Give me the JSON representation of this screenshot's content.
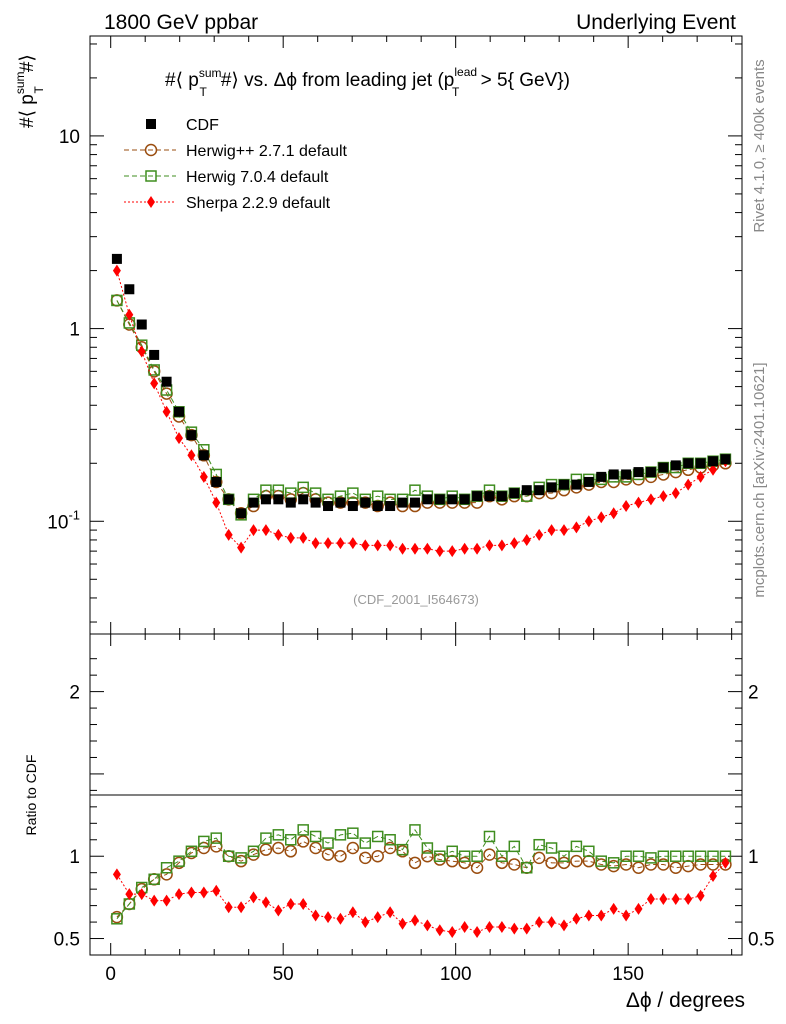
{
  "header": {
    "left": "1800 GeV ppbar",
    "right": "Underlying Event"
  },
  "side": {
    "rivet": "Rivet 4.1.0, ≥ 400k events",
    "mcplots": "mcplots.cern.ch [arXiv:2401.10621]"
  },
  "plot": {
    "title_pre": "#⟨ p",
    "title_sup": "sum",
    "title_sub": "T",
    "title_post": "#⟩ vs. Δϕ from leading jet  (p",
    "title_sup2": "lead",
    "title_sub2": "T",
    "title_tail": " > 5{ GeV})",
    "ylabel_main": "#⟨ p",
    "ylabel_sup": "sum",
    "ylabel_sub": "T",
    "ylabel_tail": "#⟩",
    "ylabel_ratio": "Ratio to CDF",
    "xlabel": "Δϕ / degrees",
    "watermark": "(CDF_2001_I564673)"
  },
  "chart_data": {
    "type": "scatter",
    "title": "#⟨ p_T^sum #⟩ vs. Δϕ from leading jet (p_T^lead > 5 GeV)",
    "xlabel": "Δϕ / degrees",
    "ylabel": "#⟨ p_T^sum #⟩",
    "xlim": [
      -6,
      183
    ],
    "ylim_main": [
      0.026,
      33
    ],
    "ylim_ratio": [
      0.4,
      2.35
    ],
    "yscale_main": "log",
    "x_ticks": [
      "0",
      "50",
      "100",
      "150"
    ],
    "y_ticks_main": [
      "10",
      "1",
      "10^-1"
    ],
    "y_ticks_ratio": [
      "2",
      "1",
      "0.5"
    ],
    "legend_position": "top-left",
    "x": [
      1.8,
      5.4,
      9,
      12.6,
      16.2,
      19.8,
      23.4,
      27,
      30.6,
      34.2,
      37.8,
      41.4,
      45,
      48.6,
      52.2,
      55.8,
      59.4,
      63,
      66.6,
      70.2,
      73.8,
      77.4,
      81,
      84.6,
      88.2,
      91.8,
      95.4,
      99,
      102.6,
      106.2,
      109.8,
      113.4,
      117,
      120.6,
      124.2,
      127.8,
      131.4,
      135,
      138.6,
      142.2,
      145.8,
      149.4,
      153,
      156.6,
      160.2,
      163.8,
      167.4,
      171,
      174.6,
      178.2
    ],
    "series": [
      {
        "name": "CDF",
        "marker": "filled-square",
        "color": "#000000",
        "values": [
          2.3,
          1.6,
          1.05,
          0.73,
          0.53,
          0.37,
          0.28,
          0.22,
          0.16,
          0.13,
          0.11,
          0.125,
          0.13,
          0.13,
          0.125,
          0.13,
          0.125,
          0.12,
          0.125,
          0.12,
          0.125,
          0.12,
          0.12,
          0.125,
          0.125,
          0.13,
          0.13,
          0.13,
          0.13,
          0.135,
          0.135,
          0.135,
          0.14,
          0.145,
          0.145,
          0.15,
          0.155,
          0.155,
          0.16,
          0.17,
          0.175,
          0.175,
          0.18,
          0.18,
          0.19,
          0.195,
          0.2,
          0.2,
          0.205,
          0.21
        ]
      },
      {
        "name": "Herwig++ 2.7.1 default",
        "marker": "open-circle",
        "line": "dashed",
        "color": "#9a4d0f",
        "values": [
          1.4,
          1.05,
          0.8,
          0.6,
          0.46,
          0.35,
          0.28,
          0.22,
          0.16,
          0.13,
          0.11,
          0.12,
          0.135,
          0.135,
          0.13,
          0.14,
          0.13,
          0.125,
          0.125,
          0.125,
          0.125,
          0.12,
          0.125,
          0.12,
          0.12,
          0.125,
          0.125,
          0.125,
          0.125,
          0.125,
          0.135,
          0.13,
          0.135,
          0.135,
          0.14,
          0.14,
          0.145,
          0.15,
          0.155,
          0.16,
          0.16,
          0.165,
          0.165,
          0.17,
          0.175,
          0.18,
          0.185,
          0.19,
          0.195,
          0.2
        ]
      },
      {
        "name": "Herwig 7.0.4 default",
        "marker": "open-square",
        "line": "dashed",
        "color": "#3f8d1f",
        "values": [
          1.4,
          1.07,
          0.82,
          0.61,
          0.48,
          0.37,
          0.29,
          0.235,
          0.175,
          0.13,
          0.108,
          0.13,
          0.145,
          0.145,
          0.14,
          0.15,
          0.14,
          0.13,
          0.135,
          0.14,
          0.13,
          0.135,
          0.13,
          0.13,
          0.145,
          0.135,
          0.13,
          0.135,
          0.13,
          0.135,
          0.145,
          0.135,
          0.14,
          0.135,
          0.15,
          0.155,
          0.155,
          0.165,
          0.165,
          0.165,
          0.17,
          0.17,
          0.175,
          0.18,
          0.19,
          0.19,
          0.2,
          0.2,
          0.205,
          0.21
        ]
      },
      {
        "name": "Sherpa 2.2.9 default",
        "marker": "filled-diamond",
        "line": "dotted",
        "color": "#ff0000",
        "values": [
          2.0,
          1.18,
          0.76,
          0.52,
          0.37,
          0.27,
          0.22,
          0.17,
          0.125,
          0.085,
          0.073,
          0.09,
          0.09,
          0.085,
          0.082,
          0.082,
          0.077,
          0.077,
          0.077,
          0.077,
          0.075,
          0.075,
          0.075,
          0.072,
          0.072,
          0.072,
          0.07,
          0.07,
          0.072,
          0.072,
          0.075,
          0.075,
          0.077,
          0.08,
          0.085,
          0.09,
          0.09,
          0.093,
          0.1,
          0.105,
          0.11,
          0.12,
          0.125,
          0.13,
          0.135,
          0.14,
          0.155,
          0.17,
          0.185,
          0.205
        ]
      }
    ],
    "ratio_series": [
      {
        "name": "Herwig++ 2.7.1 default",
        "color": "#9a4d0f",
        "values": [
          0.63,
          0.71,
          0.8,
          0.86,
          0.89,
          0.96,
          1.02,
          1.05,
          1.06,
          1.0,
          0.97,
          1.01,
          1.04,
          1.05,
          1.03,
          1.09,
          1.05,
          1.01,
          1.0,
          1.05,
          0.99,
          1.0,
          1.05,
          1.03,
          0.96,
          1.0,
          0.98,
          0.97,
          0.96,
          0.93,
          1.01,
          0.96,
          0.95,
          0.93,
          0.99,
          0.96,
          0.96,
          0.97,
          0.97,
          0.95,
          0.94,
          0.95,
          0.93,
          0.95,
          0.95,
          0.93,
          0.94,
          0.95,
          0.95,
          0.95
        ]
      },
      {
        "name": "Herwig 7.0.4 default",
        "color": "#3f8d1f",
        "values": [
          0.62,
          0.71,
          0.81,
          0.86,
          0.93,
          0.97,
          1.03,
          1.09,
          1.11,
          1.0,
          0.99,
          1.03,
          1.11,
          1.13,
          1.1,
          1.16,
          1.12,
          1.08,
          1.13,
          1.14,
          1.08,
          1.12,
          1.1,
          1.04,
          1.16,
          1.05,
          1.0,
          1.03,
          1.0,
          1.0,
          1.12,
          1.0,
          1.06,
          0.93,
          1.07,
          1.05,
          1.0,
          1.06,
          1.03,
          0.97,
          0.96,
          1.0,
          1.0,
          0.99,
          1.0,
          1.0,
          1.0,
          1.0,
          1.0,
          1.0
        ]
      },
      {
        "name": "Sherpa 2.2.9 default",
        "color": "#ff0000",
        "values": [
          0.89,
          0.77,
          0.77,
          0.73,
          0.73,
          0.77,
          0.78,
          0.78,
          0.79,
          0.69,
          0.69,
          0.75,
          0.72,
          0.67,
          0.71,
          0.71,
          0.64,
          0.63,
          0.62,
          0.66,
          0.6,
          0.63,
          0.66,
          0.59,
          0.61,
          0.58,
          0.55,
          0.54,
          0.57,
          0.54,
          0.57,
          0.57,
          0.56,
          0.56,
          0.6,
          0.6,
          0.58,
          0.62,
          0.64,
          0.64,
          0.68,
          0.64,
          0.68,
          0.74,
          0.74,
          0.74,
          0.74,
          0.76,
          0.88,
          0.96
        ]
      }
    ]
  }
}
